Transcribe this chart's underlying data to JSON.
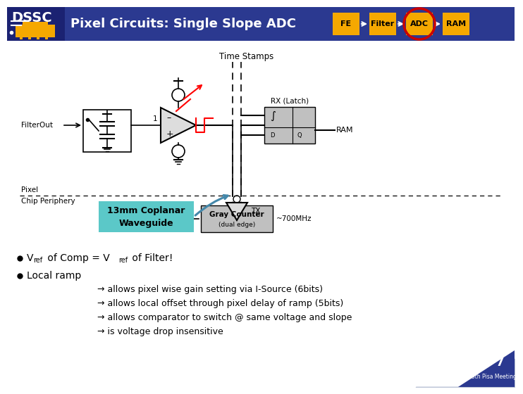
{
  "title": "Pixel Circuits: Single Slope ADC",
  "header_bg": "#2B3990",
  "header_text_color": "#FFFFFF",
  "pipeline_labels": [
    "FE",
    "Filter",
    "ADC",
    "RAM"
  ],
  "pipeline_color": "#F5A800",
  "active_step": 2,
  "active_circle_color": "#CC0000",
  "body_bg": "#FFFFFF",
  "waveguide_label": "13mm Coplanar\nWaveguide",
  "waveguide_bg": "#5BC8C8",
  "bullet2_arrows": [
    "→ allows pixel wise gain setting via I-Source (6bits)",
    "→ allows local offset through pixel delay of ramp (5bits)",
    "→ allows comparator to switch @ same voltage and slope",
    "→ is voltage drop insensitive"
  ],
  "footer_page": "7",
  "footer_text": "13th Pisa Meeting",
  "footer_curve_color": "#2B3990"
}
